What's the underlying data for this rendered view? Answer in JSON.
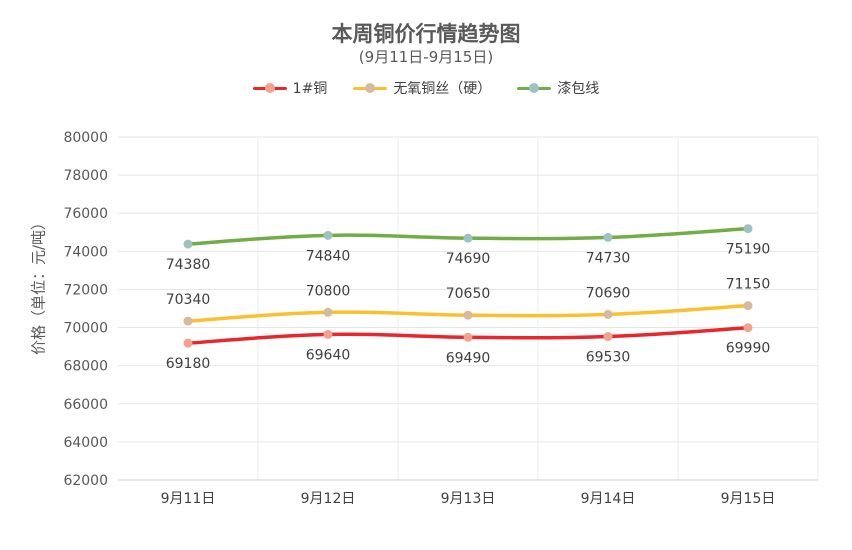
{
  "chart_data": {
    "type": "line",
    "title": "本周铜价行情趋势图",
    "subtitle": "(9月11日-9月15日)",
    "xlabel": "",
    "ylabel": "价格（单位：元/吨）",
    "categories": [
      "9月11日",
      "9月12日",
      "9月13日",
      "9月14日",
      "9月15日"
    ],
    "ylim": [
      62000,
      80000
    ],
    "yticks": [
      "62000",
      "64000",
      "66000",
      "68000",
      "70000",
      "72000",
      "74000",
      "76000",
      "78000",
      "80000"
    ],
    "grid": true,
    "legend_position": "top",
    "series": [
      {
        "name": "1#铜",
        "values": [
          69180,
          69640,
          69490,
          69530,
          69990
        ],
        "labels": [
          "69180",
          "69640",
          "69490",
          "69530",
          "69990"
        ],
        "color": "#e8262b",
        "marker": "#f4a08c",
        "label_pos": "below"
      },
      {
        "name": "无氧铜丝（硬）",
        "values": [
          70340,
          70800,
          70650,
          70690,
          71150
        ],
        "labels": [
          "70340",
          "70800",
          "70650",
          "70690",
          "71150"
        ],
        "color": "#fbc02d",
        "marker": "#d9b99b",
        "label_pos": "above"
      },
      {
        "name": "漆包线",
        "values": [
          74380,
          74840,
          74690,
          74730,
          75190
        ],
        "labels": [
          "74380",
          "74840",
          "74690",
          "74730",
          "75190"
        ],
        "color": "#70ad47",
        "marker": "#9dc3c1",
        "label_pos": "below"
      }
    ]
  }
}
